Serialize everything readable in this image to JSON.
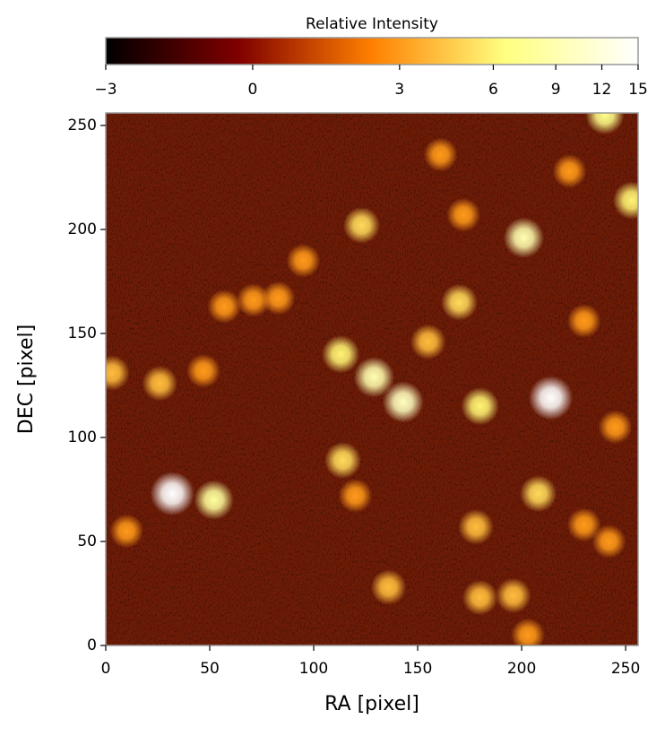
{
  "chart_data": {
    "type": "heatmap",
    "xlabel": "RA [pixel]",
    "ylabel": "DEC [pixel]",
    "xlim": [
      0,
      256
    ],
    "ylim": [
      0,
      256
    ],
    "xticks": [
      0,
      50,
      100,
      150,
      200,
      250
    ],
    "yticks": [
      0,
      50,
      100,
      150,
      200,
      250
    ],
    "x": [
      32,
      52,
      214,
      143,
      129,
      113,
      201,
      180,
      170,
      208,
      114,
      123,
      240,
      253,
      26,
      3,
      155,
      180,
      196,
      136,
      178,
      71,
      230,
      161,
      223,
      57,
      120,
      203,
      83,
      95,
      47,
      230,
      245,
      242,
      172,
      10
    ],
    "y": [
      73,
      70,
      119,
      117,
      129,
      140,
      196,
      115,
      165,
      73,
      89,
      202,
      255,
      214,
      126,
      131,
      146,
      23,
      24,
      28,
      57,
      166,
      156,
      236,
      228,
      163,
      72,
      5,
      167,
      185,
      132,
      58,
      105,
      50,
      207,
      55
    ],
    "values": [
      15,
      8,
      15,
      10,
      9,
      6,
      9,
      6,
      5,
      5,
      5,
      5,
      7,
      6,
      4,
      4,
      4,
      4,
      4,
      4,
      4,
      3,
      3,
      3,
      3,
      3,
      3,
      3,
      3,
      3,
      3,
      3,
      3,
      3,
      3,
      3
    ],
    "colorbar": {
      "label": "Relative Intensity",
      "lim": [
        -3,
        15
      ],
      "scale": "asinh",
      "ticks": [
        {
          "value": -3,
          "label": "−3"
        },
        0,
        3,
        6,
        9,
        12,
        15
      ]
    }
  }
}
